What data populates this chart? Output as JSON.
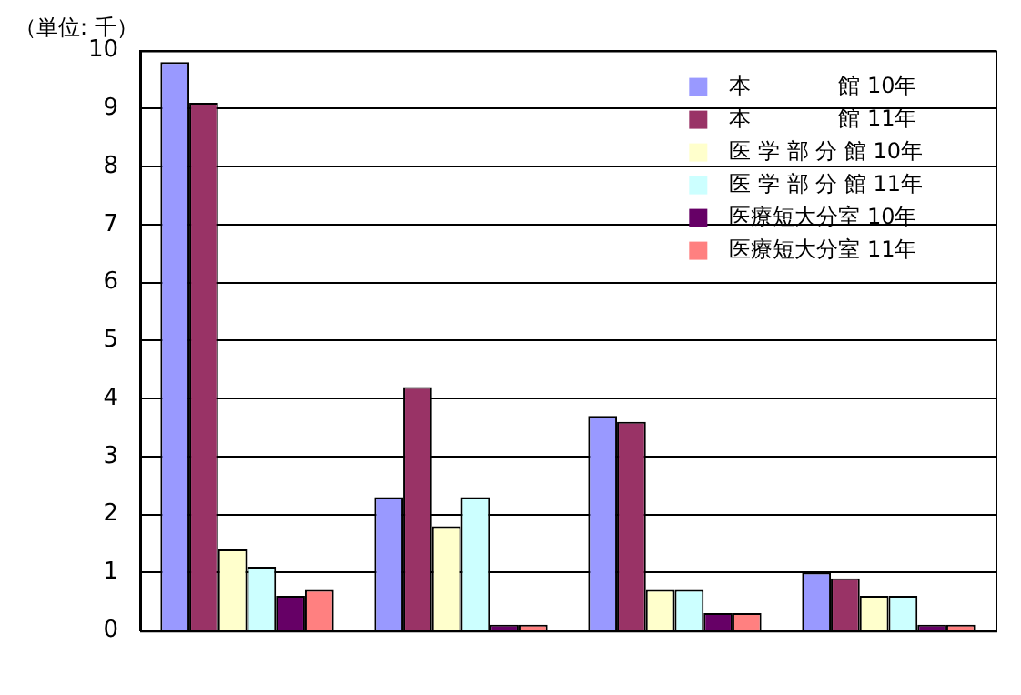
{
  "chart_data": {
    "type": "bar",
    "ylabel": "（単位: 千）",
    "categories": [
      null,
      null,
      null,
      null
    ],
    "series": [
      {
        "name": "本　　　　館 10年",
        "color": "#9999ff",
        "values": [
          9.8,
          2.3,
          3.7,
          1.0
        ]
      },
      {
        "name": "本　　　　館 11年",
        "color": "#993366",
        "values": [
          9.1,
          4.2,
          3.6,
          0.9
        ]
      },
      {
        "name": "医 学 部 分 館 10年",
        "color": "#ffffcc",
        "values": [
          1.4,
          1.8,
          0.7,
          0.6
        ]
      },
      {
        "name": "医 学 部 分 館 11年",
        "color": "#ccffff",
        "values": [
          1.1,
          2.3,
          0.7,
          0.6
        ]
      },
      {
        "name": "医療短大分室 10年",
        "color": "#660066",
        "values": [
          0.6,
          0.1,
          0.3,
          0.1
        ]
      },
      {
        "name": "医療短大分室 11年",
        "color": "#ff8080",
        "values": [
          0.7,
          0.1,
          0.3,
          0.1
        ]
      }
    ],
    "ylim": [
      0,
      10
    ],
    "yticks": [
      0,
      1,
      2,
      3,
      4,
      5,
      6,
      7,
      8,
      9,
      10
    ],
    "grid": "y",
    "legend": "top right"
  }
}
